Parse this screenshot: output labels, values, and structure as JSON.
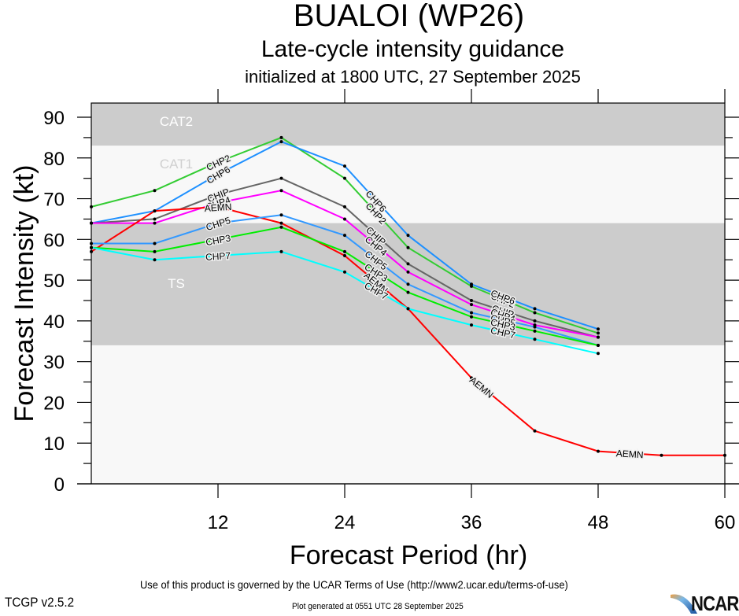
{
  "header": {
    "title": "BUALOI (WP26)",
    "subtitle": "Late-cycle intensity guidance",
    "init_line": "initialized at 1800 UTC, 27 September 2025"
  },
  "footer": {
    "terms": "Use of this product is governed by the UCAR Terms of Use (http://www2.ucar.edu/terms-of-use)",
    "version": "TCGP v2.5.2",
    "generated": "Plot generated at 0551 UTC   28 September 2025",
    "logo": "NCAR"
  },
  "chart_data": {
    "type": "line",
    "title": "BUALOI (WP26)",
    "xlabel": "Forecast Period (hr)",
    "ylabel": "Forecast Intensity (kt)",
    "xlim": [
      0,
      60
    ],
    "ylim": [
      0,
      94
    ],
    "xticks": [
      12,
      24,
      36,
      48,
      60
    ],
    "yticks": [
      0,
      10,
      20,
      30,
      40,
      50,
      60,
      70,
      80,
      90
    ],
    "grid": false,
    "bands": [
      {
        "label": "CAT2",
        "from": 83,
        "to": 94,
        "color": "#cccccc"
      },
      {
        "label": "CAT1",
        "from": 64,
        "to": 83,
        "color": "#f8f8f8"
      },
      {
        "label": "TS",
        "from": 34,
        "to": 64,
        "color": "#cccccc"
      },
      {
        "label": "",
        "from": 0,
        "to": 34,
        "color": "#f8f8f8"
      }
    ],
    "series": [
      {
        "name": "CHP2",
        "color": "#33cc33",
        "x": [
          0,
          6,
          12,
          18,
          24,
          30,
          36,
          42,
          48
        ],
        "values": [
          68,
          72,
          79,
          85,
          75,
          58,
          48.5,
          42,
          37
        ]
      },
      {
        "name": "CHP6",
        "color": "#1e90ff",
        "x": [
          0,
          6,
          12,
          18,
          24,
          30,
          36,
          42,
          48
        ],
        "values": [
          64,
          67,
          76,
          84,
          78,
          61,
          49,
          43,
          38
        ]
      },
      {
        "name": "CHIP",
        "color": "#666666",
        "x": [
          0,
          6,
          12,
          18,
          24,
          30,
          36,
          42,
          48
        ],
        "values": [
          64,
          65,
          71,
          75,
          68,
          54,
          45,
          40,
          36
        ]
      },
      {
        "name": "CHP4",
        "color": "#ff00ff",
        "x": [
          0,
          6,
          12,
          18,
          24,
          30,
          36,
          42,
          48
        ],
        "values": [
          64,
          64,
          69,
          72,
          65,
          52,
          44,
          39,
          36
        ]
      },
      {
        "name": "AEMN",
        "color": "#ff0000",
        "x": [
          0,
          6,
          12,
          18,
          24,
          30,
          36,
          42,
          48,
          54,
          60
        ],
        "values": [
          57,
          67,
          68,
          64,
          56,
          43,
          26,
          13,
          8,
          7,
          7
        ]
      },
      {
        "name": "CHP5",
        "color": "#3399ff",
        "x": [
          0,
          6,
          12,
          18,
          24,
          30,
          36,
          42,
          48
        ],
        "values": [
          59,
          59,
          64,
          66,
          61,
          49,
          42,
          38.5,
          34
        ]
      },
      {
        "name": "CHP3",
        "color": "#00ee00",
        "x": [
          0,
          6,
          12,
          18,
          24,
          30,
          36,
          42,
          48
        ],
        "values": [
          58,
          57,
          60,
          63,
          57,
          47,
          41,
          37.5,
          34
        ]
      },
      {
        "name": "CHP7",
        "color": "#00ffff",
        "x": [
          0,
          6,
          12,
          18,
          24,
          30,
          36,
          42,
          48
        ],
        "values": [
          58,
          55,
          56,
          57,
          52,
          43,
          39,
          35.5,
          32
        ]
      }
    ],
    "label_hours": [
      12,
      27,
      39
    ],
    "aemn_label_hours": [
      12,
      27,
      37,
      51
    ]
  }
}
